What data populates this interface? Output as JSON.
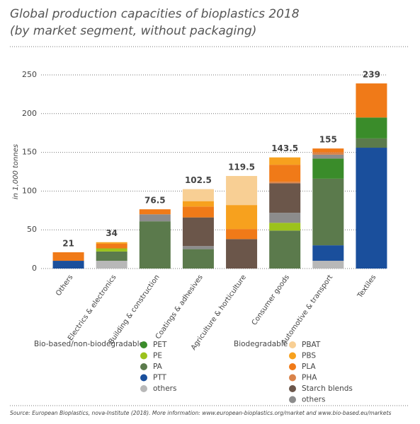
{
  "chart_data": {
    "type": "stacked-bar",
    "title": "Global production capacities of bioplastics 2018",
    "subtitle": "(by market segment, without packaging)",
    "y_label": "in 1,000 tonnes",
    "categories": [
      "Others",
      "Electrics & electronics",
      "Building & construction",
      "Coatings & adhesives",
      "Agriculture & horticulture",
      "Consumer goods",
      "Automotive & transport",
      "Textiles"
    ],
    "totals": [
      21,
      34,
      76.5,
      102.5,
      119.5,
      143.5,
      155,
      239
    ],
    "ylim": [
      0,
      250
    ],
    "yticks": [
      0,
      50,
      100,
      150,
      200,
      250
    ],
    "grid": true,
    "series_groups": [
      {
        "title": "Bio-based/non-biodegradable",
        "series": [
          {
            "name": "PET",
            "color": "#3a8c2a",
            "values": [
              0,
              0,
              0,
              0,
              0,
              0,
              26,
              27
            ]
          },
          {
            "name": "PE",
            "color": "#9cc21c",
            "values": [
              0,
              4,
              0,
              0,
              0,
              10,
              0,
              0
            ]
          },
          {
            "name": "PA",
            "color": "#5b7a4c",
            "values": [
              0,
              12,
              61,
              25,
              0,
              49,
              86,
              12
            ]
          },
          {
            "name": "PTT",
            "color": "#1a4f9c",
            "values": [
              10,
              0,
              0,
              0,
              0,
              0,
              20,
              156
            ]
          },
          {
            "name": "others",
            "color": "#b8b8b8",
            "values": [
              0,
              10,
              0,
              0,
              0,
              0,
              10,
              0
            ]
          }
        ]
      },
      {
        "title": "Biodegradable",
        "series": [
          {
            "name": "PBAT",
            "color": "#f8cf94",
            "values": [
              0,
              0,
              0,
              15.5,
              37.5,
              0,
              0,
              0
            ]
          },
          {
            "name": "PBS",
            "color": "#f7a11e",
            "values": [
              0,
              2,
              0,
              7,
              31,
              9.5,
              0,
              0
            ]
          },
          {
            "name": "PLA",
            "color": "#f07a18",
            "values": [
              11,
              6,
              6.5,
              14,
              13,
              22,
              5,
              44
            ]
          },
          {
            "name": "PHA",
            "color": "#d9834a",
            "values": [
              0,
              0,
              0,
              0,
              0,
              2,
              3,
              0
            ]
          },
          {
            "name": "Starch blends",
            "color": "#6b564a",
            "values": [
              0,
              0,
              0,
              37,
              38,
              38,
              0,
              0
            ]
          },
          {
            "name": "others",
            "color": "#8c8c8c",
            "values": [
              0,
              0,
              9,
              4,
              0,
              13,
              5,
              0
            ]
          }
        ]
      }
    ],
    "source": "Source: European Bioplastics, nova-Institute (2018). More information: www.european-bioplastics.org/market and www.bio-based.eu/markets"
  }
}
